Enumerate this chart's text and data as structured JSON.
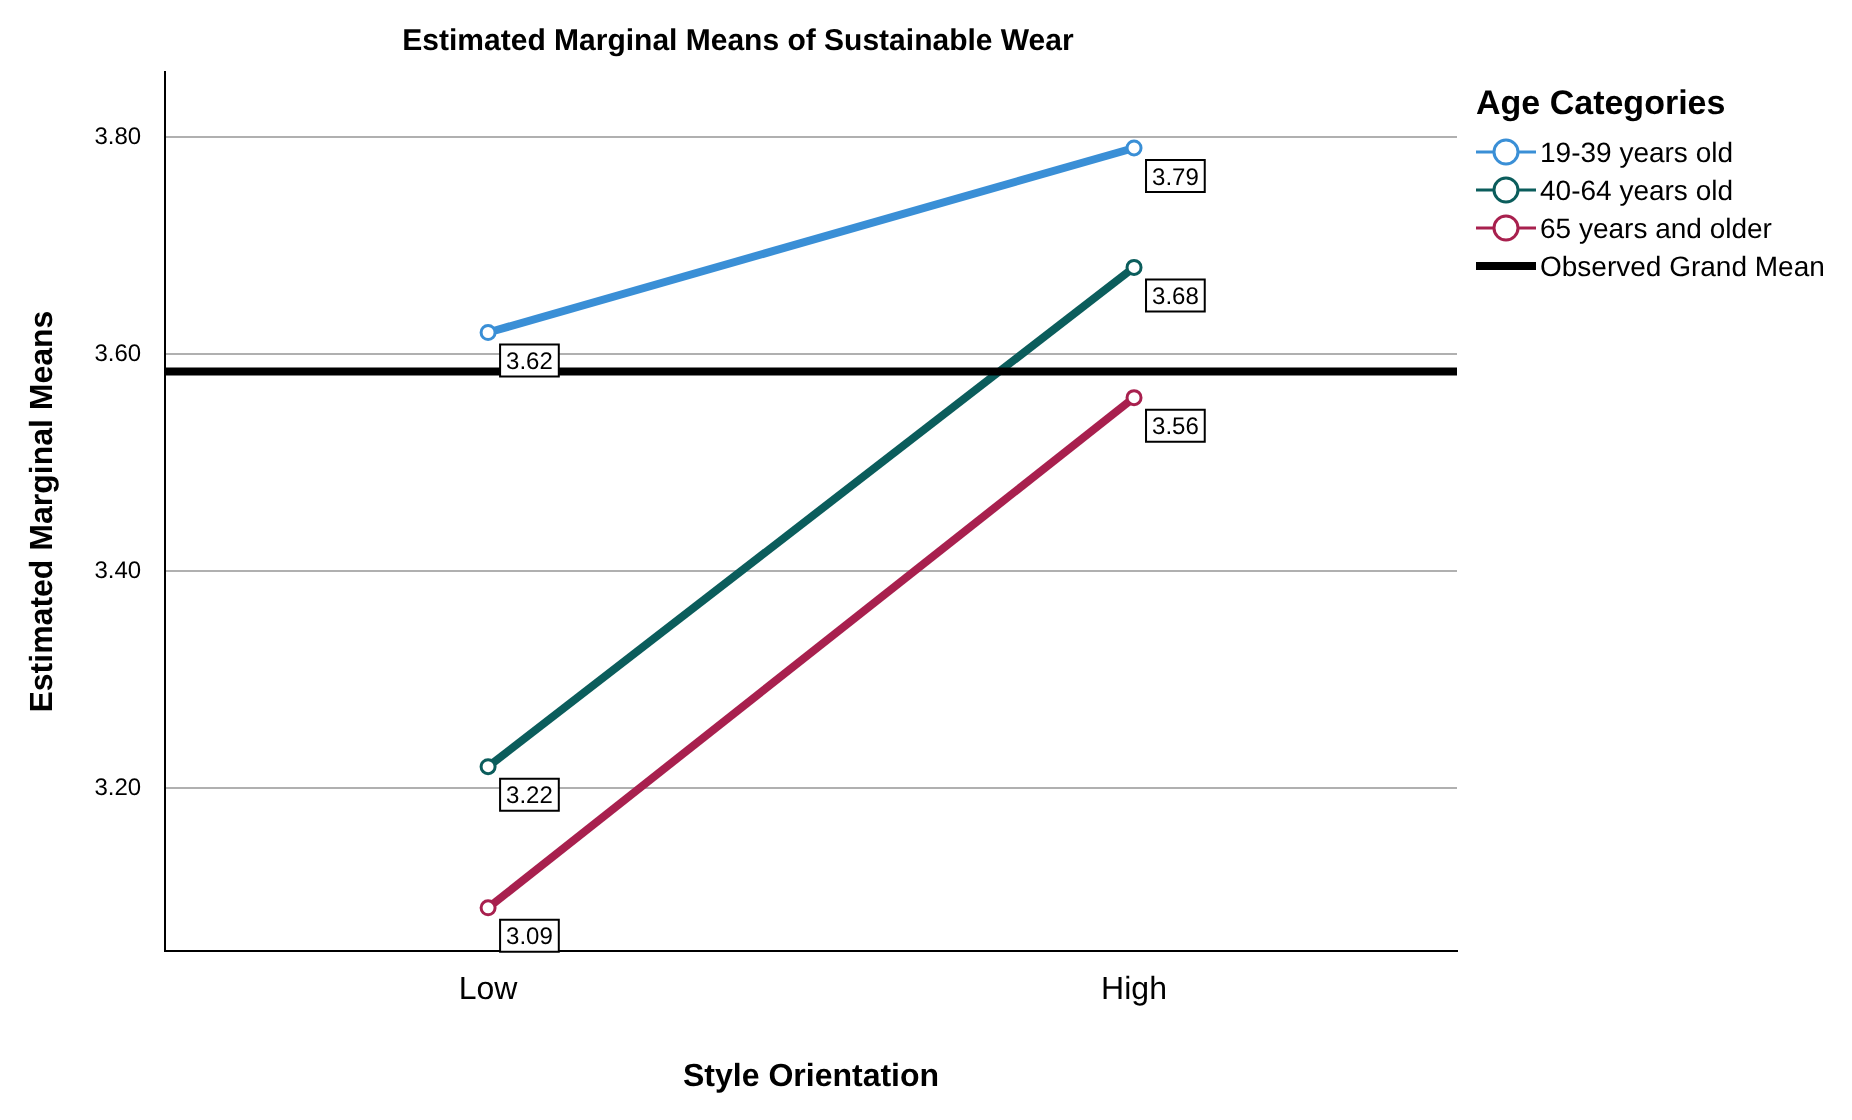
{
  "chart_data": {
    "type": "line",
    "title": "Estimated Marginal Means of Sustainable Wear",
    "xlabel": "Style Orientation",
    "ylabel": "Estimated Marginal Means",
    "legend_title": "Age Categories",
    "categories": [
      "Low",
      "High"
    ],
    "series": [
      {
        "name": "19-39 years old",
        "color": "#3a8fd6",
        "values": [
          3.62,
          3.79
        ]
      },
      {
        "name": "40-64 years old",
        "color": "#0b5d5c",
        "values": [
          3.22,
          3.68
        ]
      },
      {
        "name": "65 years and older",
        "color": "#a8204e",
        "values": [
          3.09,
          3.56
        ]
      }
    ],
    "ref_lines": [
      {
        "axis": "y",
        "value": 3.584,
        "label": "Observed Grand Mean",
        "color": "#000000"
      }
    ],
    "ylim": [
      3.05,
      3.86
    ],
    "yticks": [
      {
        "value": 3.2,
        "label": "3.20"
      },
      {
        "value": 3.4,
        "label": "3.40"
      },
      {
        "value": 3.6,
        "label": "3.60"
      },
      {
        "value": 3.8,
        "label": "3.80"
      }
    ],
    "grid": "y",
    "legend": "right",
    "marker": "circle",
    "line_style": "solid",
    "data_labels": true
  }
}
